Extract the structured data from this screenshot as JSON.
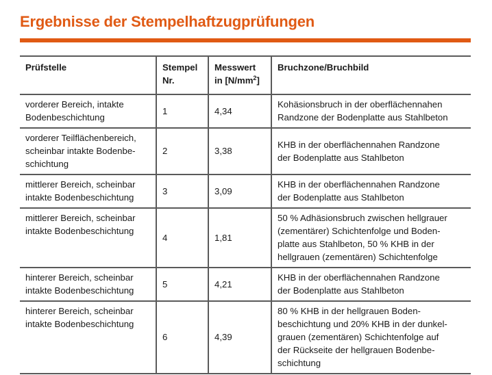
{
  "page": {
    "title": "Ergebnisse der Stempelhaftzugprüfungen",
    "accent_color": "#e05a14",
    "rule_color": "#5a5a5a"
  },
  "table": {
    "headers": {
      "pruefstelle": "Prüfstelle",
      "stempel_line1": "Stempel",
      "stempel_line2": "Nr.",
      "messwert_line1": "Messwert",
      "messwert_line2_prefix": "in [N/mm",
      "messwert_line2_sup": "2",
      "messwert_line2_suffix": "]",
      "bruchzone": "Bruchzone/Bruchbild"
    },
    "rows": [
      {
        "pruefstelle": [
          "vorderer Bereich, intakte",
          "Bodenbeschichtung"
        ],
        "stempel": "1",
        "messwert": "4,34",
        "bruchzone": [
          "Kohäsionsbruch in der oberflächennahen",
          "Randzone der Bodenplatte aus Stahlbeton"
        ]
      },
      {
        "pruefstelle": [
          "vorderer Teilflächenbereich,",
          "scheinbar intakte Bodenbe-",
          "schichtung"
        ],
        "stempel": "2",
        "messwert": "3,38",
        "bruchzone": [
          "KHB in der oberflächennahen Randzone",
          "der Bodenplatte aus Stahlbeton"
        ]
      },
      {
        "pruefstelle": [
          "mittlerer Bereich, scheinbar",
          "intakte Bodenbeschichtung"
        ],
        "stempel": "3",
        "messwert": "3,09",
        "bruchzone": [
          "KHB in der oberflächennahen Randzone",
          "der Bodenplatte aus Stahlbeton"
        ]
      },
      {
        "pruefstelle": [
          "mittlerer Bereich, scheinbar",
          "intakte Bodenbeschichtung"
        ],
        "stempel": "4",
        "messwert": "1,81",
        "bruchzone": [
          "50 % Adhäsionsbruch zwischen hellgrauer",
          "(zementärer) Schichtenfolge und Boden-",
          "platte aus Stahlbeton, 50 % KHB in der",
          "hellgrauen (zementären) Schichtenfolge"
        ]
      },
      {
        "pruefstelle": [
          "hinterer Bereich, scheinbar",
          "intakte Bodenbeschichtung"
        ],
        "stempel": "5",
        "messwert": "4,21",
        "bruchzone": [
          "KHB in der oberflächennahen Randzone",
          "der Bodenplatte aus Stahlbeton"
        ]
      },
      {
        "pruefstelle": [
          "hinterer Bereich, scheinbar",
          "intakte Bodenbeschichtung"
        ],
        "stempel": "6",
        "messwert": "4,39",
        "bruchzone": [
          "80 % KHB in der hellgrauen Boden-",
          "beschichtung und 20% KHB in der dunkel-",
          "grauen (zementären) Schichtenfolge auf",
          "der Rückseite der hellgrauen Bodenbe-",
          "schichtung"
        ]
      }
    ]
  }
}
